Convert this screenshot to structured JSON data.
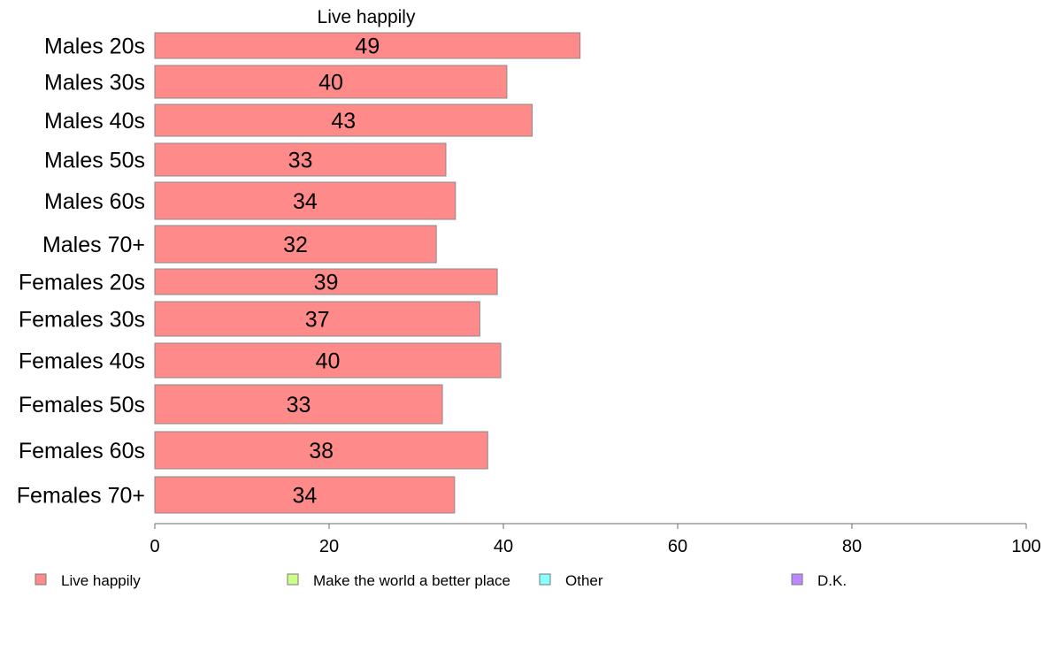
{
  "chart_data": {
    "type": "bar",
    "orientation": "horizontal",
    "title": "Live happily",
    "categories": [
      "Males 20s",
      "Males 30s",
      "Males 40s",
      "Males 50s",
      "Males 60s",
      "Males 70+",
      "Females 20s",
      "Females 30s",
      "Females 40s",
      "Females 50s",
      "Females 60s",
      "Females 70+"
    ],
    "series": [
      {
        "name": "Live happily",
        "color": "#ff8a8a",
        "values": [
          48.8,
          40.4,
          43.3,
          33.4,
          34.5,
          32.3,
          39.3,
          37.3,
          39.7,
          33.0,
          38.2,
          34.4
        ],
        "labels": [
          "49",
          "40",
          "43",
          "33",
          "34",
          "32",
          "39",
          "37",
          "40",
          "33",
          "38",
          "34"
        ]
      }
    ],
    "xlim": [
      0,
      100
    ],
    "xticks": [
      "0",
      "20",
      "40",
      "60",
      "80",
      "100"
    ],
    "grid": false,
    "legend": {
      "position": "bottom",
      "items": [
        {
          "label": "Live happily",
          "color": "#ff8a8a"
        },
        {
          "label": "Make the world a better place",
          "color": "#ccff88"
        },
        {
          "label": "Other",
          "color": "#88ffff"
        },
        {
          "label": "D.K.",
          "color": "#bb88ff"
        }
      ]
    }
  }
}
